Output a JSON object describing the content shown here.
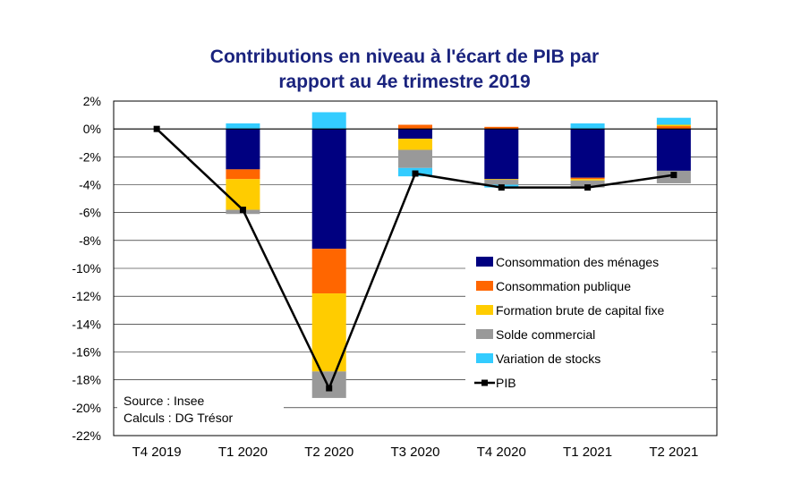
{
  "chart_data": {
    "type": "bar",
    "stacked": true,
    "title_line1": "Contributions en niveau à l'écart de PIB par",
    "title_line2": "rapport au 4e trimestre 2019",
    "categories": [
      "T4 2019",
      "T1 2020",
      "T2 2020",
      "T3 2020",
      "T4 2020",
      "T1 2021",
      "T2 2021"
    ],
    "ylim": [
      -22,
      2
    ],
    "yticks": [
      2,
      0,
      -2,
      -4,
      -6,
      -8,
      -10,
      -12,
      -14,
      -16,
      -18,
      -20,
      -22
    ],
    "ytick_labels": [
      "2%",
      "0%",
      "-2%",
      "-4%",
      "-6%",
      "-8%",
      "-10%",
      "-12%",
      "-14%",
      "-16%",
      "-18%",
      "-20%",
      "-22%"
    ],
    "series": [
      {
        "name": "Consommation des ménages",
        "color": "#000080",
        "values": [
          0,
          -2.9,
          -8.6,
          -0.7,
          -3.6,
          -3.5,
          -3.0
        ]
      },
      {
        "name": "Consommation publique",
        "color": "#ff6600",
        "values": [
          0,
          -0.7,
          -3.2,
          0.3,
          0.15,
          -0.1,
          0.2
        ]
      },
      {
        "name": "Formation brute de capital fixe",
        "color": "#ffcc00",
        "values": [
          0,
          -2.2,
          -5.6,
          -0.8,
          -0.05,
          -0.1,
          0.1
        ]
      },
      {
        "name": "Solde commercial",
        "color": "#999999",
        "values": [
          0,
          -0.3,
          -1.9,
          -1.3,
          -0.35,
          -0.5,
          -0.9
        ]
      },
      {
        "name": "Variation de stocks",
        "color": "#33ccff",
        "values": [
          0,
          0.4,
          1.2,
          -0.6,
          -0.2,
          0.4,
          0.5
        ]
      }
    ],
    "line": {
      "name": "PIB",
      "color": "#000000",
      "values": [
        0,
        -5.8,
        -18.6,
        -3.2,
        -4.2,
        -4.2,
        -3.3
      ]
    },
    "legend_position": "bottom-right",
    "notes": [
      "Source : Insee",
      "Calculs : DG Trésor"
    ],
    "grid": true
  }
}
